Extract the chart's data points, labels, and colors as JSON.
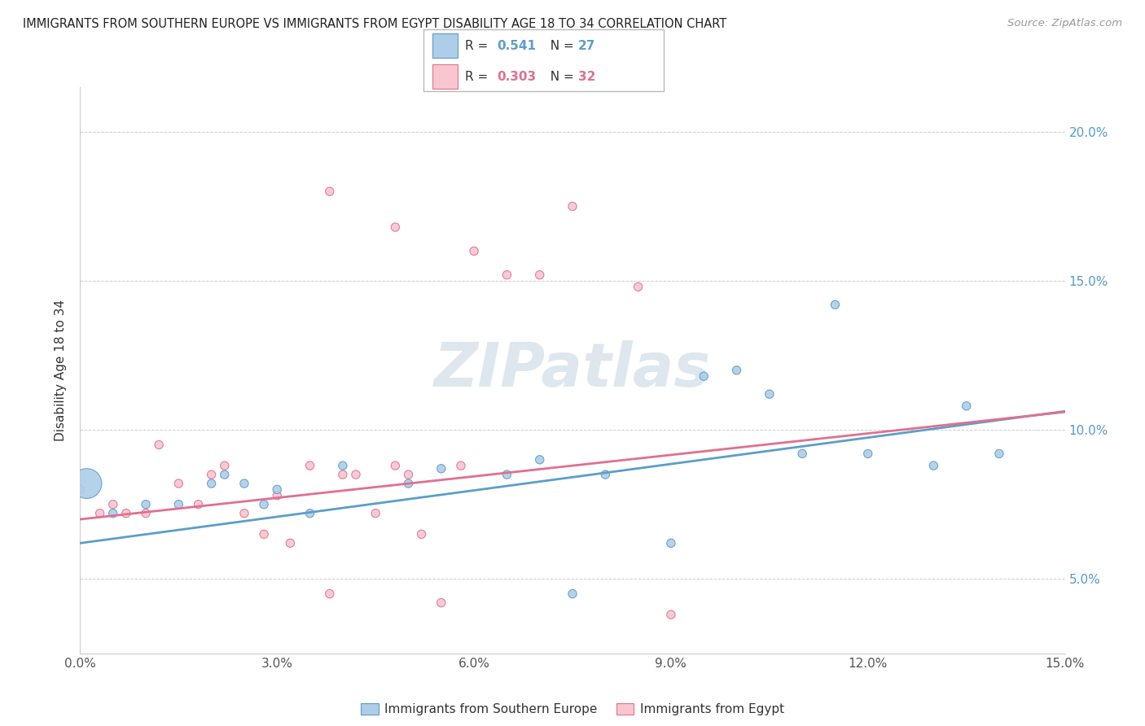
{
  "title": "IMMIGRANTS FROM SOUTHERN EUROPE VS IMMIGRANTS FROM EGYPT DISABILITY AGE 18 TO 34 CORRELATION CHART",
  "source": "Source: ZipAtlas.com",
  "ylabel": "Disability Age 18 to 34",
  "xlim": [
    0.0,
    0.15
  ],
  "ylim": [
    0.025,
    0.215
  ],
  "xtick_vals": [
    0.0,
    0.03,
    0.06,
    0.09,
    0.12,
    0.15
  ],
  "ytick_vals": [
    0.05,
    0.1,
    0.15,
    0.2
  ],
  "ytick_labels": [
    "5.0%",
    "10.0%",
    "15.0%",
    "20.0%"
  ],
  "xtick_labels": [
    "0.0%",
    "3.0%",
    "6.0%",
    "9.0%",
    "12.0%",
    "15.0%"
  ],
  "legend_labels": [
    "Immigrants from Southern Europe",
    "Immigrants from Egypt"
  ],
  "R_blue": "0.541",
  "N_blue": "27",
  "R_pink": "0.303",
  "N_pink": "32",
  "blue_fill": "#aecde8",
  "blue_edge": "#5b9ec9",
  "pink_fill": "#f9c6d0",
  "pink_edge": "#e07090",
  "blue_line": "#5b9ec9",
  "pink_line": "#e07090",
  "watermark": "ZIPatlas",
  "blue_regression_slope": 0.295,
  "blue_regression_intercept": 0.062,
  "pink_regression_slope": 0.24,
  "pink_regression_intercept": 0.07,
  "scatter_blue_x": [
    0.001,
    0.005,
    0.01,
    0.015,
    0.02,
    0.022,
    0.025,
    0.03,
    0.035,
    0.04,
    0.05,
    0.055,
    0.065,
    0.07,
    0.075,
    0.08,
    0.09,
    0.095,
    0.1,
    0.105,
    0.11,
    0.115,
    0.12,
    0.13,
    0.135,
    0.14,
    0.028
  ],
  "scatter_blue_y": [
    0.082,
    0.072,
    0.075,
    0.075,
    0.082,
    0.085,
    0.082,
    0.08,
    0.072,
    0.088,
    0.082,
    0.087,
    0.085,
    0.09,
    0.045,
    0.085,
    0.062,
    0.118,
    0.12,
    0.112,
    0.092,
    0.142,
    0.092,
    0.088,
    0.108,
    0.092,
    0.075
  ],
  "scatter_blue_s": [
    700,
    55,
    55,
    55,
    55,
    55,
    55,
    55,
    55,
    55,
    55,
    55,
    55,
    55,
    55,
    55,
    55,
    55,
    55,
    55,
    55,
    55,
    55,
    55,
    55,
    55,
    55
  ],
  "scatter_pink_x": [
    0.0,
    0.003,
    0.005,
    0.007,
    0.01,
    0.012,
    0.015,
    0.018,
    0.02,
    0.022,
    0.025,
    0.028,
    0.03,
    0.032,
    0.035,
    0.038,
    0.04,
    0.042,
    0.045,
    0.048,
    0.05,
    0.052,
    0.055,
    0.058,
    0.06,
    0.065,
    0.07,
    0.075,
    0.085,
    0.09,
    0.048,
    0.038
  ],
  "scatter_pink_y": [
    0.08,
    0.072,
    0.075,
    0.072,
    0.072,
    0.095,
    0.082,
    0.075,
    0.085,
    0.088,
    0.072,
    0.065,
    0.078,
    0.062,
    0.088,
    0.045,
    0.085,
    0.085,
    0.072,
    0.088,
    0.085,
    0.065,
    0.042,
    0.088,
    0.16,
    0.152,
    0.152,
    0.175,
    0.148,
    0.038,
    0.168,
    0.18
  ],
  "scatter_pink_s": [
    55,
    55,
    55,
    55,
    55,
    55,
    55,
    55,
    55,
    55,
    55,
    55,
    55,
    55,
    55,
    55,
    55,
    55,
    55,
    55,
    55,
    55,
    55,
    55,
    55,
    55,
    55,
    55,
    55,
    55,
    55,
    55
  ]
}
